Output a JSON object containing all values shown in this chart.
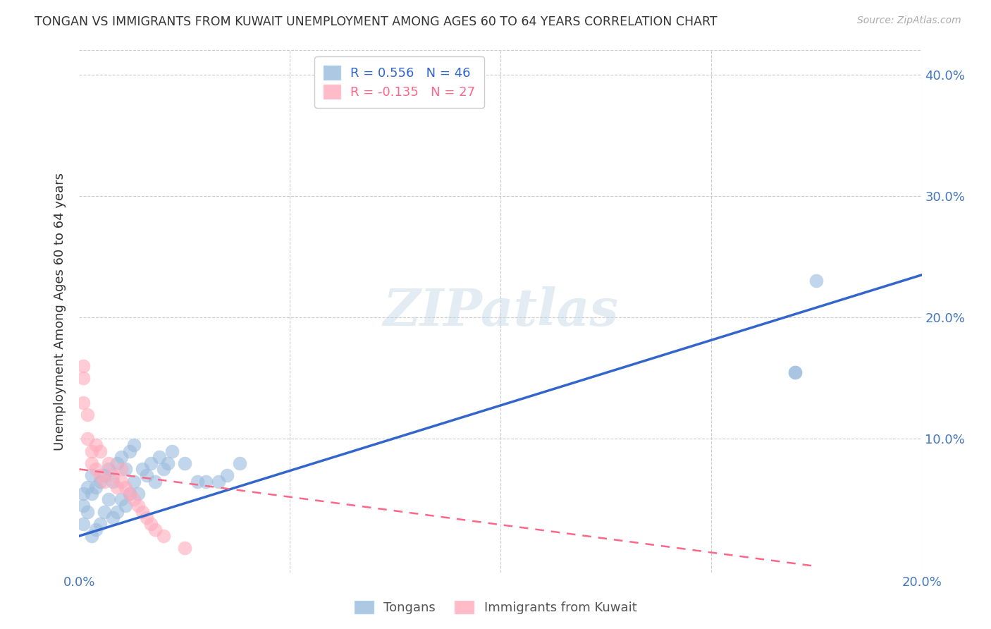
{
  "title": "TONGAN VS IMMIGRANTS FROM KUWAIT UNEMPLOYMENT AMONG AGES 60 TO 64 YEARS CORRELATION CHART",
  "source": "Source: ZipAtlas.com",
  "ylabel": "Unemployment Among Ages 60 to 64 years",
  "xlim": [
    0.0,
    0.2
  ],
  "ylim": [
    -0.01,
    0.42
  ],
  "xticks": [
    0.0,
    0.05,
    0.1,
    0.15,
    0.2
  ],
  "yticks": [
    0.0,
    0.1,
    0.2,
    0.3,
    0.4
  ],
  "background_color": "#ffffff",
  "grid_color": "#cccccc",
  "blue_scatter_color": "#99bbdd",
  "pink_scatter_color": "#ffaabb",
  "blue_line_color": "#3366cc",
  "pink_line_color": "#ff6688",
  "text_color": "#4477bb",
  "tongan_R": 0.556,
  "tongan_N": 46,
  "kuwait_R": -0.135,
  "kuwait_N": 27,
  "legend_label1": "Tongans",
  "legend_label2": "Immigrants from Kuwait",
  "watermark": "ZIPatlas",
  "tongan_x": [
    0.001,
    0.001,
    0.001,
    0.002,
    0.002,
    0.003,
    0.003,
    0.003,
    0.004,
    0.004,
    0.005,
    0.005,
    0.006,
    0.006,
    0.007,
    0.007,
    0.008,
    0.008,
    0.009,
    0.009,
    0.01,
    0.01,
    0.011,
    0.011,
    0.012,
    0.012,
    0.013,
    0.013,
    0.014,
    0.015,
    0.016,
    0.017,
    0.018,
    0.019,
    0.02,
    0.021,
    0.022,
    0.025,
    0.028,
    0.03,
    0.033,
    0.035,
    0.038,
    0.17,
    0.17,
    0.175
  ],
  "tongan_y": [
    0.03,
    0.045,
    0.055,
    0.04,
    0.06,
    0.02,
    0.055,
    0.07,
    0.025,
    0.06,
    0.03,
    0.065,
    0.04,
    0.07,
    0.05,
    0.075,
    0.035,
    0.065,
    0.04,
    0.08,
    0.05,
    0.085,
    0.045,
    0.075,
    0.055,
    0.09,
    0.065,
    0.095,
    0.055,
    0.075,
    0.07,
    0.08,
    0.065,
    0.085,
    0.075,
    0.08,
    0.09,
    0.08,
    0.065,
    0.065,
    0.065,
    0.07,
    0.08,
    0.155,
    0.155,
    0.23
  ],
  "kuwait_x": [
    0.001,
    0.001,
    0.001,
    0.002,
    0.002,
    0.003,
    0.003,
    0.004,
    0.004,
    0.005,
    0.005,
    0.006,
    0.007,
    0.008,
    0.009,
    0.01,
    0.01,
    0.011,
    0.012,
    0.013,
    0.014,
    0.015,
    0.016,
    0.017,
    0.018,
    0.02,
    0.025
  ],
  "kuwait_y": [
    0.13,
    0.15,
    0.16,
    0.1,
    0.12,
    0.08,
    0.09,
    0.075,
    0.095,
    0.07,
    0.09,
    0.065,
    0.08,
    0.07,
    0.06,
    0.065,
    0.075,
    0.06,
    0.055,
    0.05,
    0.045,
    0.04,
    0.035,
    0.03,
    0.025,
    0.02,
    0.01
  ]
}
